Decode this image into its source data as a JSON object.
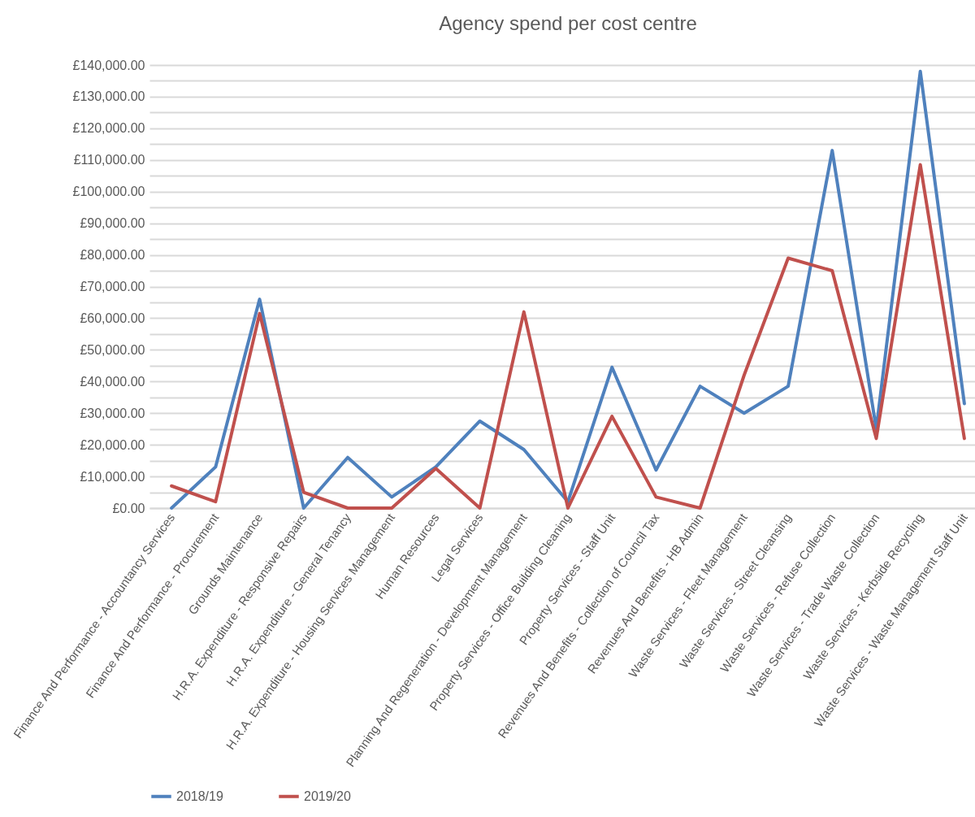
{
  "chart_data": {
    "type": "line",
    "title": "Agency spend per cost centre",
    "categories": [
      "Finance And Performance - Accountancy Services",
      "Finance And Performance - Procurement",
      "Grounds Maintenance",
      "H.R.A. Expenditure - Responsive Repairs",
      "H.R.A. Expenditure - General Tenancy",
      "H.R.A. Expenditure - Housing Services Management",
      "Human Resources",
      "Legal Services",
      "Planning And Regeneration - Development Management",
      "Property Services - Office Building Cleaning",
      "Property Services - Staff Unit",
      "Revenues And Benefits - Collection of Council Tax",
      "Revenues And Benefits - HB Admin",
      "Waste Services - Fleet Management",
      "Waste Services - Street Cleansing",
      "Waste Services - Refuse Collection",
      "Waste Services - Trade Waste Collection",
      "Waste Services - Kerbside Recycling",
      "Waste Services - Waste Management Staff Unit"
    ],
    "series": [
      {
        "name": "2018/19",
        "color": "#4f81bd",
        "values": [
          0,
          13000,
          66000,
          0,
          16000,
          3500,
          13000,
          27500,
          18500,
          2000,
          44500,
          12000,
          38500,
          30000,
          38500,
          113000,
          25000,
          138000,
          33000
        ]
      },
      {
        "name": "2019/20",
        "color": "#c0504d",
        "values": [
          7000,
          2000,
          61500,
          5000,
          0,
          0,
          12500,
          0,
          62000,
          0,
          29000,
          3500,
          0,
          42000,
          79000,
          75000,
          22000,
          108500,
          22000
        ]
      }
    ],
    "ylim": [
      0,
      140000
    ],
    "yticks": [
      {
        "value": 0,
        "label": "£0.00"
      },
      {
        "value": 5000,
        "label": null
      },
      {
        "value": 10000,
        "label": "£10,000.00"
      },
      {
        "value": 15000,
        "label": null
      },
      {
        "value": 20000,
        "label": "£20,000.00"
      },
      {
        "value": 25000,
        "label": null
      },
      {
        "value": 30000,
        "label": "£30,000.00"
      },
      {
        "value": 35000,
        "label": null
      },
      {
        "value": 40000,
        "label": "£40,000.00"
      },
      {
        "value": 45000,
        "label": null
      },
      {
        "value": 50000,
        "label": "£50,000.00"
      },
      {
        "value": 55000,
        "label": null
      },
      {
        "value": 60000,
        "label": "£60,000.00"
      },
      {
        "value": 65000,
        "label": null
      },
      {
        "value": 70000,
        "label": "£70,000.00"
      },
      {
        "value": 75000,
        "label": null
      },
      {
        "value": 80000,
        "label": "£80,000.00"
      },
      {
        "value": 85000,
        "label": null
      },
      {
        "value": 90000,
        "label": "£90,000.00"
      },
      {
        "value": 95000,
        "label": null
      },
      {
        "value": 100000,
        "label": "£100,000.00"
      },
      {
        "value": 105000,
        "label": null
      },
      {
        "value": 110000,
        "label": "£110,000.00"
      },
      {
        "value": 115000,
        "label": null
      },
      {
        "value": 120000,
        "label": "£120,000.00"
      },
      {
        "value": 125000,
        "label": null
      },
      {
        "value": 130000,
        "label": "£130,000.00"
      },
      {
        "value": 135000,
        "label": null
      },
      {
        "value": 140000,
        "label": "£140,000.00"
      }
    ],
    "grid": "y",
    "legend": "bottom left",
    "marker": "none",
    "line_style": "solid"
  }
}
